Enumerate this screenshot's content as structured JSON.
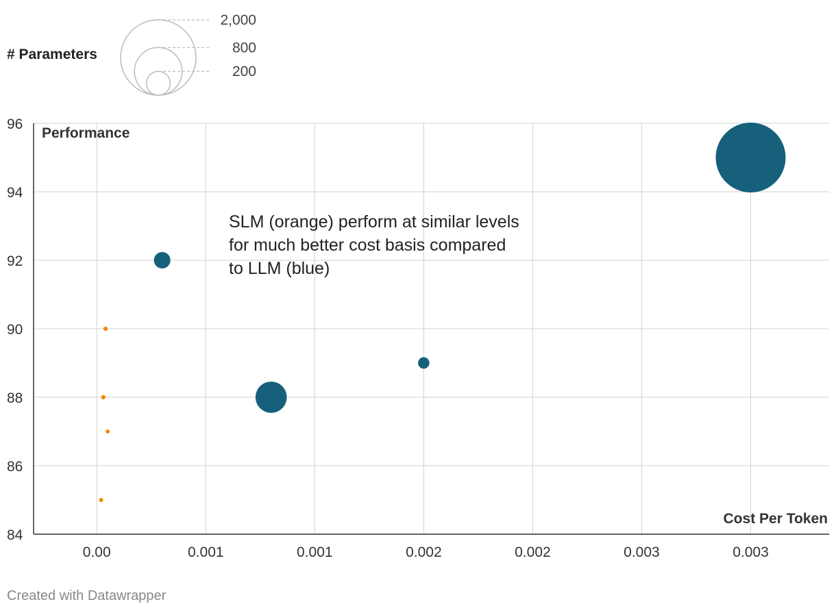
{
  "chart_data": {
    "type": "scatter",
    "xlabel": "Cost Per Token",
    "ylabel": "Performance",
    "xlim": [
      -0.00029,
      0.00336
    ],
    "ylim": [
      84,
      96
    ],
    "x_ticks": [
      {
        "value": 0.0,
        "label": "0.00"
      },
      {
        "value": 0.0005,
        "label": "0.001"
      },
      {
        "value": 0.001,
        "label": "0.001"
      },
      {
        "value": 0.0015,
        "label": "0.002"
      },
      {
        "value": 0.002,
        "label": "0.002"
      },
      {
        "value": 0.0025,
        "label": "0.003"
      },
      {
        "value": 0.003,
        "label": "0.003"
      }
    ],
    "y_ticks": [
      84,
      86,
      88,
      90,
      92,
      94,
      96
    ],
    "grid": true,
    "size_legend": {
      "title": "# Parameters",
      "values": [
        {
          "value": 2000,
          "label": "2,000"
        },
        {
          "value": 800,
          "label": "800"
        },
        {
          "value": 200,
          "label": "200"
        }
      ]
    },
    "series": [
      {
        "color": "#17607c",
        "points": [
          {
            "x": 0.003,
            "y": 95,
            "size": 1800
          },
          {
            "x": 0.0003,
            "y": 92,
            "size": 100
          },
          {
            "x": 0.0008,
            "y": 88,
            "size": 360
          },
          {
            "x": 0.0015,
            "y": 89,
            "size": 48
          }
        ]
      },
      {
        "color": "#f08c00",
        "points": [
          {
            "x": 4e-05,
            "y": 90,
            "size": 7
          },
          {
            "x": 3e-05,
            "y": 88,
            "size": 7
          },
          {
            "x": 5e-05,
            "y": 87,
            "size": 6
          },
          {
            "x": 2e-05,
            "y": 85,
            "size": 6
          }
        ]
      }
    ],
    "annotation": [
      "SLM (orange) perform at similar levels",
      "for much better cost basis compared",
      "to LLM (blue)"
    ]
  },
  "footer": {
    "credit": "Created with Datawrapper"
  }
}
